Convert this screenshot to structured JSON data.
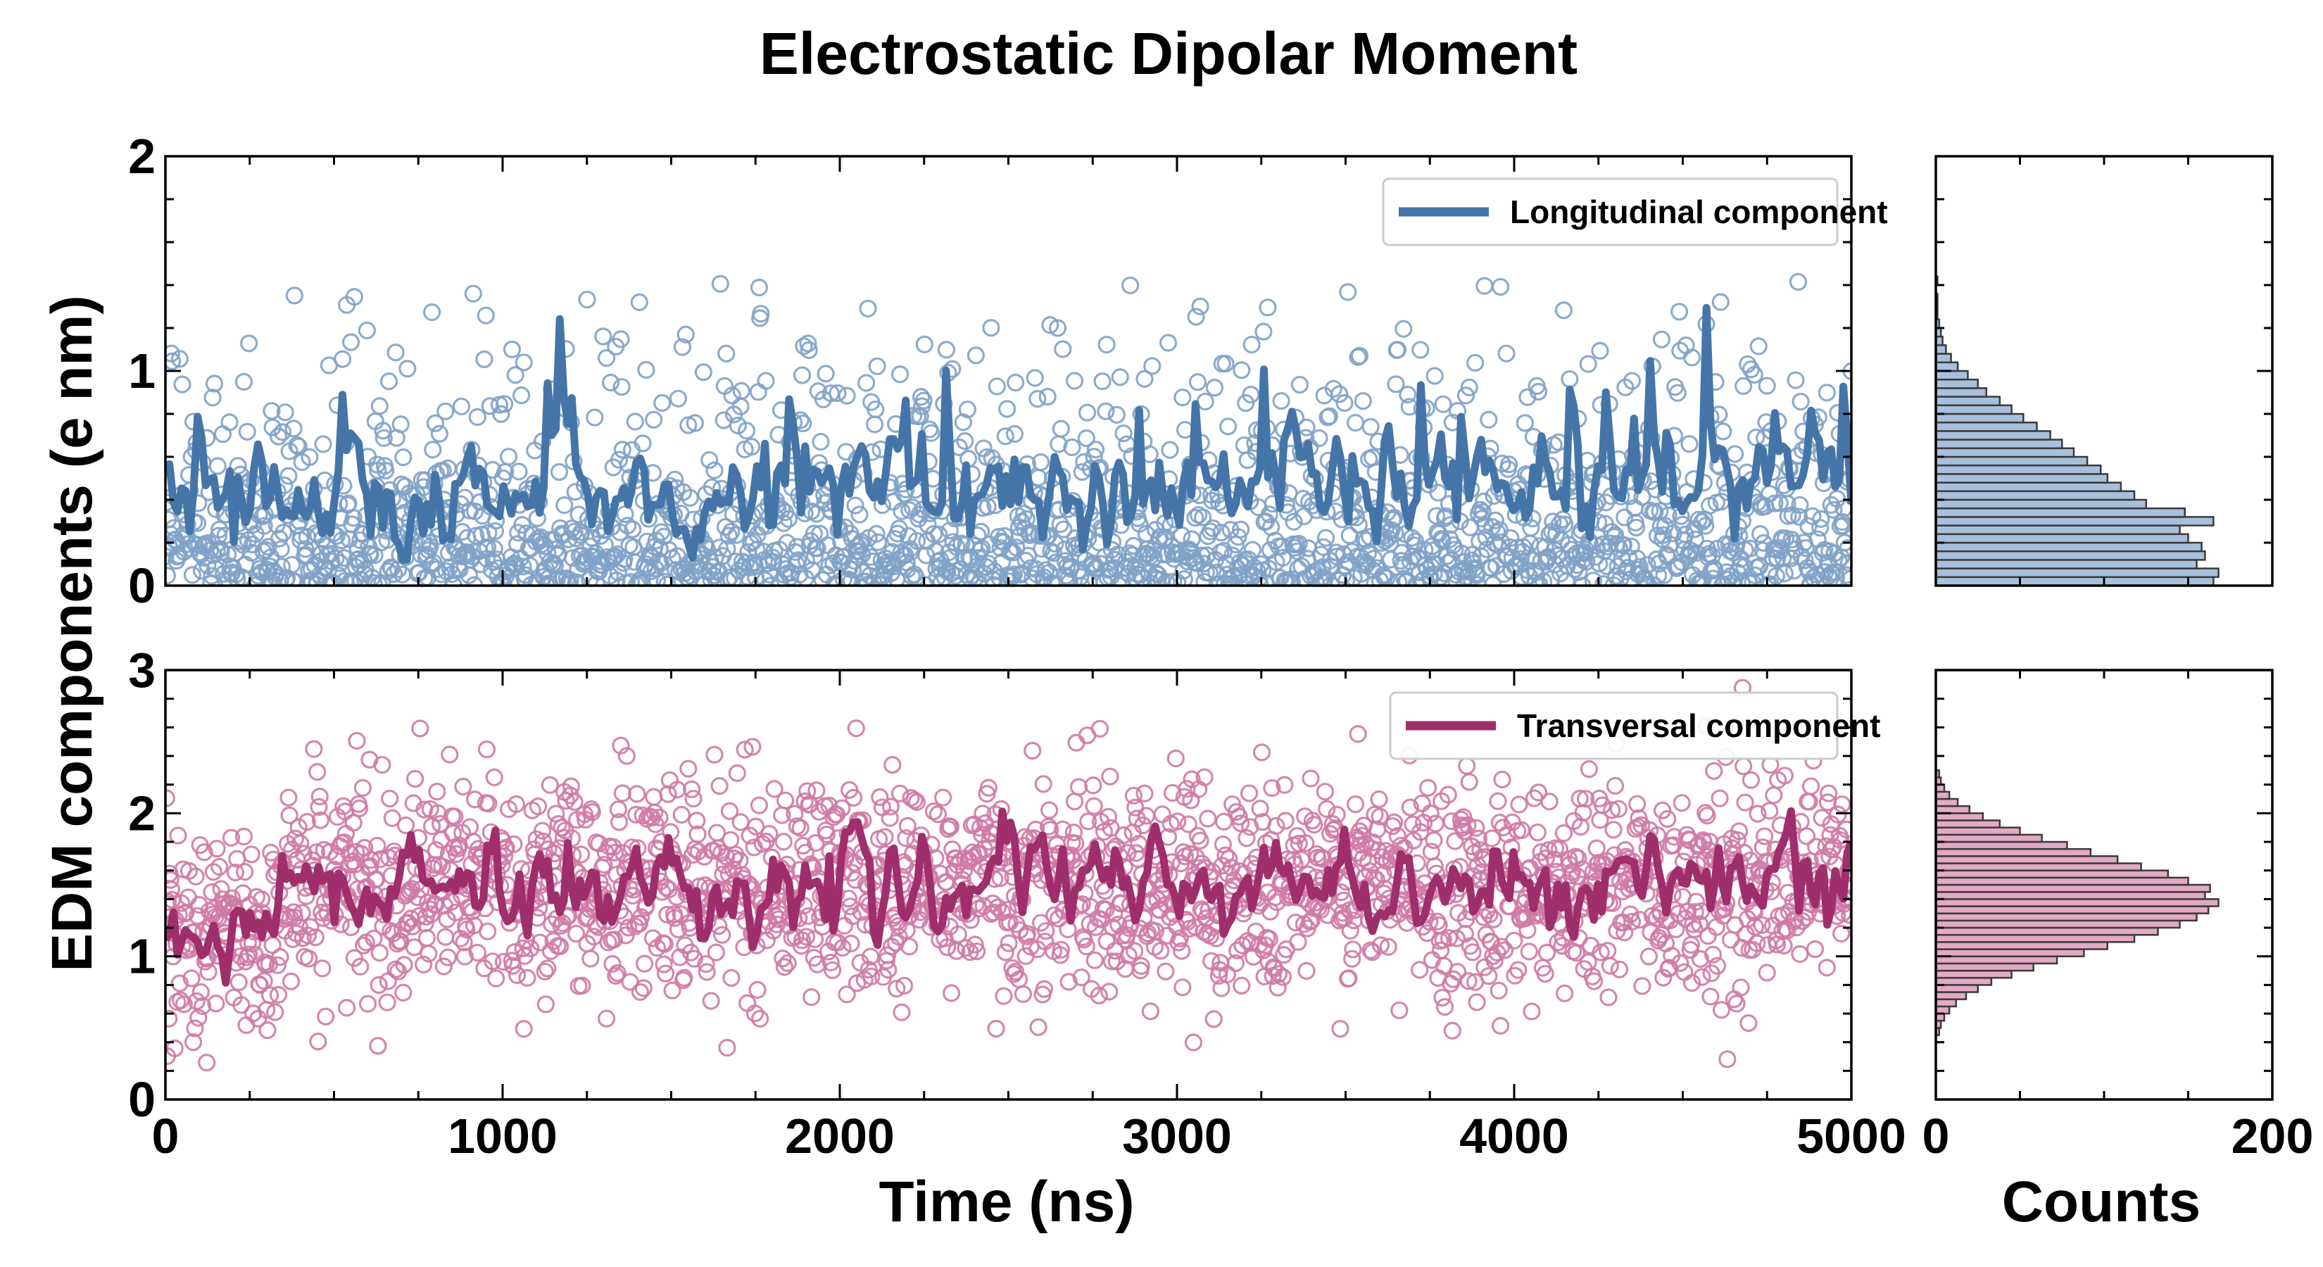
{
  "chart_data": {
    "type": "scatter",
    "title": "Electrostatic Dipolar Moment",
    "ylabel": "EDM components (e nm)",
    "xlabel": "Time (ns)",
    "hist_xlabel": "Counts",
    "xlim": [
      0,
      5000
    ],
    "x_ticks": [
      "0",
      "1000",
      "2000",
      "3000",
      "4000",
      "5000"
    ],
    "hist_xlim": [
      0,
      200
    ],
    "hist_x_ticks": [
      "0",
      "200"
    ],
    "panels": [
      {
        "name": "longitudinal",
        "legend": "Longitudinal component",
        "color": "#4575a8",
        "marker_color": "#7fa2c7",
        "hist_fill": "#a9c0dc",
        "ylim": [
          0,
          2
        ],
        "y_ticks": [
          "0",
          "1",
          "2"
        ],
        "series_mean": 0.45,
        "series_noise": 0.12,
        "scatter_scale": 0.45,
        "scatter_points": 2000,
        "histogram": {
          "bin_width": 0.04,
          "bin_start": 0,
          "counts": [
            165,
            168,
            155,
            160,
            158,
            150,
            145,
            165,
            148,
            125,
            118,
            110,
            102,
            98,
            90,
            82,
            75,
            68,
            60,
            52,
            45,
            38,
            30,
            25,
            19,
            13,
            9,
            6,
            4,
            3,
            2,
            1,
            1,
            1,
            0,
            1,
            0,
            0
          ]
        }
      },
      {
        "name": "transversal",
        "legend": "Transversal component",
        "color": "#9e2f6a",
        "marker_color": "#cf7aa6",
        "hist_fill": "#e3a9c5",
        "ylim": [
          0,
          3
        ],
        "y_ticks": [
          "0",
          "1",
          "2",
          "3"
        ],
        "series_mean": 1.5,
        "series_noise": 0.14,
        "scatter_std": 0.38,
        "scatter_points": 2000,
        "histogram": {
          "bin_width": 0.05,
          "bin_start": 0.45,
          "counts": [
            2,
            3,
            5,
            8,
            12,
            18,
            25,
            33,
            45,
            58,
            72,
            88,
            102,
            118,
            132,
            145,
            155,
            162,
            168,
            160,
            163,
            150,
            138,
            122,
            108,
            92,
            78,
            63,
            50,
            38,
            28,
            20,
            13,
            8,
            5,
            3,
            2
          ]
        }
      }
    ]
  }
}
